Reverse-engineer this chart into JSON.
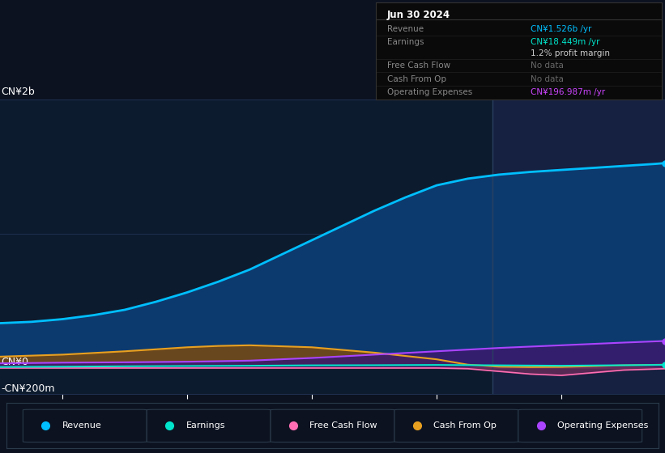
{
  "bg_color": "#0c1220",
  "chart_bg": "#0d1b2e",
  "highlight_bg": "#162040",
  "grid_color": "#1e3050",
  "title": "Jun 30 2024",
  "info_rows": [
    {
      "label": "Revenue",
      "value": "CN¥1.526b /yr",
      "vcolor": "#00bfff",
      "lcolor": "#888888"
    },
    {
      "label": "Earnings",
      "value": "CN¥18.449m /yr",
      "vcolor": "#00e5cc",
      "lcolor": "#888888"
    },
    {
      "label": "",
      "value": "1.2% profit margin",
      "vcolor": "#cccccc",
      "lcolor": ""
    },
    {
      "label": "Free Cash Flow",
      "value": "No data",
      "vcolor": "#666666",
      "lcolor": "#888888"
    },
    {
      "label": "Cash From Op",
      "value": "No data",
      "vcolor": "#666666",
      "lcolor": "#888888"
    },
    {
      "label": "Operating Expenses",
      "value": "CN¥196.987m /yr",
      "vcolor": "#cc44ff",
      "lcolor": "#888888"
    }
  ],
  "ylabel_top": "CN¥2b",
  "ylabel_zero": "CN¥0",
  "ylabel_neg": "-CN¥200m",
  "ylim": [
    -200,
    2000
  ],
  "xlim": [
    2019.5,
    2024.83
  ],
  "xticks": [
    2020,
    2021,
    2022,
    2023,
    2024
  ],
  "highlight_x_start": 2023.45,
  "highlight_x_end": 2024.83,
  "revenue": {
    "color": "#00bfff",
    "fill": "#0d3a6e",
    "label": "Revenue",
    "x": [
      2019.5,
      2019.75,
      2020.0,
      2020.25,
      2020.5,
      2020.75,
      2021.0,
      2021.25,
      2021.5,
      2021.75,
      2022.0,
      2022.25,
      2022.5,
      2022.75,
      2023.0,
      2023.25,
      2023.5,
      2023.75,
      2024.0,
      2024.25,
      2024.5,
      2024.75,
      2024.83
    ],
    "y": [
      330,
      340,
      360,
      390,
      430,
      490,
      560,
      640,
      730,
      840,
      950,
      1060,
      1170,
      1270,
      1360,
      1410,
      1440,
      1460,
      1475,
      1490,
      1505,
      1520,
      1526
    ]
  },
  "earnings": {
    "color": "#00e5cc",
    "label": "Earnings",
    "x": [
      2019.5,
      2020.0,
      2020.5,
      2021.0,
      2021.5,
      2022.0,
      2022.5,
      2023.0,
      2023.5,
      2024.0,
      2024.5,
      2024.83
    ],
    "y": [
      3,
      5,
      8,
      10,
      12,
      15,
      16,
      18,
      15,
      12,
      16,
      18.449
    ]
  },
  "free_cash_flow": {
    "color": "#ff6eb4",
    "fill": "#803060",
    "label": "Free Cash Flow",
    "x": [
      2019.5,
      2020.0,
      2020.5,
      2021.0,
      2021.5,
      2022.0,
      2022.5,
      2023.0,
      2023.25,
      2023.5,
      2023.75,
      2024.0,
      2024.25,
      2024.5,
      2024.83
    ],
    "y": [
      -5,
      -5,
      -5,
      -5,
      -5,
      -5,
      -5,
      -5,
      -10,
      -30,
      -50,
      -60,
      -40,
      -20,
      -10
    ]
  },
  "cash_from_op": {
    "color": "#e8a020",
    "fill": "#7a4a10",
    "label": "Cash From Op",
    "x": [
      2019.5,
      2020.0,
      2020.5,
      2021.0,
      2021.25,
      2021.5,
      2022.0,
      2022.5,
      2023.0,
      2023.25,
      2023.5,
      2023.75,
      2024.0,
      2024.5,
      2024.83
    ],
    "y": [
      80,
      95,
      120,
      150,
      160,
      165,
      150,
      110,
      60,
      20,
      5,
      2,
      3,
      15,
      20
    ]
  },
  "operating_expenses": {
    "color": "#aa44ff",
    "fill": "#3a1a6e",
    "label": "Operating Expenses",
    "x": [
      2019.5,
      2020.0,
      2020.5,
      2021.0,
      2021.5,
      2022.0,
      2022.5,
      2023.0,
      2023.5,
      2024.0,
      2024.5,
      2024.83
    ],
    "y": [
      30,
      35,
      38,
      42,
      50,
      70,
      95,
      120,
      145,
      165,
      185,
      196.987
    ]
  },
  "legend_items": [
    {
      "label": "Revenue",
      "color": "#00bfff"
    },
    {
      "label": "Earnings",
      "color": "#00e5cc"
    },
    {
      "label": "Free Cash Flow",
      "color": "#ff6eb4"
    },
    {
      "label": "Cash From Op",
      "color": "#e8a020"
    },
    {
      "label": "Operating Expenses",
      "color": "#aa44ff"
    }
  ]
}
